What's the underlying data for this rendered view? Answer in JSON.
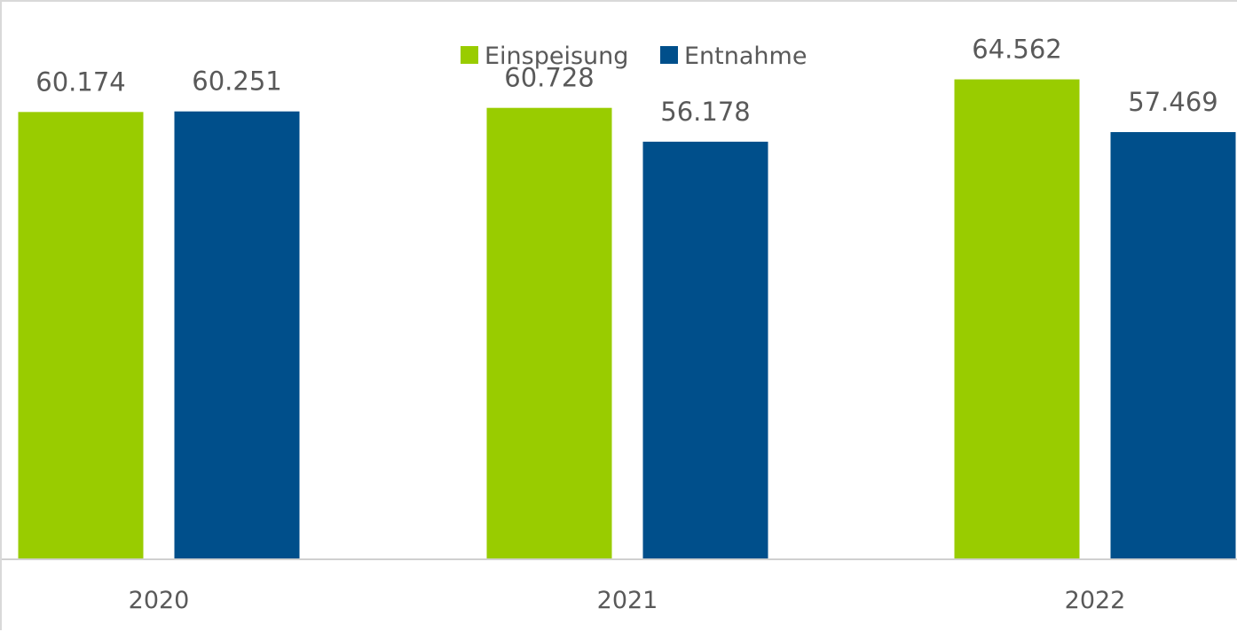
{
  "chart_data": {
    "type": "bar",
    "categories": [
      "2020",
      "2021",
      "2022"
    ],
    "series": [
      {
        "name": "Einspeisung",
        "color": "#99cc00",
        "values": [
          60174,
          60728,
          64562
        ],
        "labels": [
          "60.174",
          "60.728",
          "64.562"
        ]
      },
      {
        "name": "Entnahme",
        "color": "#004f8b",
        "values": [
          60251,
          56178,
          57469
        ],
        "labels": [
          "60.251",
          "56.178",
          "57.469"
        ]
      }
    ],
    "ylim": [
      0,
      75000
    ],
    "grid": false,
    "legend": "top-center"
  }
}
